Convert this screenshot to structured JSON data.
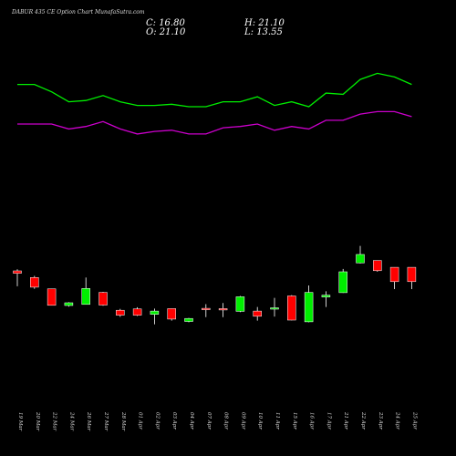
{
  "chart_data": {
    "type": "candlestick",
    "title": "DABUR 435 CE Option  Chart MunafaSutra.com",
    "ohlc_readout": {
      "C": "C: 16.80",
      "H": "H: 21.10",
      "O": "O: 21.10",
      "L": "L: 13.55"
    },
    "ylim": [
      0,
      63
    ],
    "categories": [
      "19 Mar",
      "20 Mar",
      "22 Mar",
      "24 Mar",
      "26 Mar",
      "27 Mar",
      "28 Mar",
      "01 Apr",
      "02 Apr",
      "03 Apr",
      "04 Apr",
      "07 Apr",
      "08 Apr",
      "09 Apr",
      "10 Apr",
      "11 Apr",
      "15 Apr",
      "16 Apr",
      "17 Apr",
      "21 Apr",
      "22 Apr",
      "23 Apr",
      "24 Apr",
      "25 Apr"
    ],
    "candles": [
      {
        "o": 47.4,
        "h": 48.0,
        "l": 41.8,
        "c": 46.5
      },
      {
        "o": 45.0,
        "h": 45.6,
        "l": 40.9,
        "c": 41.5
      },
      {
        "o": 40.9,
        "h": 40.9,
        "l": 34.8,
        "c": 34.9
      },
      {
        "o": 34.8,
        "h": 36.0,
        "l": 34.4,
        "c": 35.8
      },
      {
        "o": 35.2,
        "h": 45.0,
        "l": 35.2,
        "c": 41.0
      },
      {
        "o": 39.6,
        "h": 39.8,
        "l": 34.7,
        "c": 35.0
      },
      {
        "o": 33.1,
        "h": 33.6,
        "l": 30.7,
        "c": 31.3
      },
      {
        "o": 33.6,
        "h": 34.2,
        "l": 31.0,
        "c": 31.3
      },
      {
        "o": 31.6,
        "h": 33.7,
        "l": 28.0,
        "c": 32.8
      },
      {
        "o": 33.7,
        "h": 33.7,
        "l": 29.3,
        "c": 29.9
      },
      {
        "o": 29.0,
        "h": 30.3,
        "l": 28.7,
        "c": 30.1
      },
      {
        "o": 33.8,
        "h": 35.3,
        "l": 30.6,
        "c": 33.4
      },
      {
        "o": 33.7,
        "h": 35.7,
        "l": 30.6,
        "c": 33.4
      },
      {
        "o": 32.7,
        "h": 38.3,
        "l": 32.4,
        "c": 38.0
      },
      {
        "o": 32.8,
        "h": 34.3,
        "l": 29.3,
        "c": 30.9
      },
      {
        "o": 33.7,
        "h": 37.6,
        "l": 30.8,
        "c": 34.0
      },
      {
        "o": 38.3,
        "h": 38.6,
        "l": 29.4,
        "c": 29.5
      },
      {
        "o": 28.9,
        "h": 42.1,
        "l": 28.7,
        "c": 39.6
      },
      {
        "o": 37.9,
        "h": 40.0,
        "l": 34.3,
        "c": 38.6
      },
      {
        "o": 39.5,
        "h": 48.1,
        "l": 39.4,
        "c": 47.1
      },
      {
        "o": 50.3,
        "h": 56.5,
        "l": 50.1,
        "c": 53.4
      },
      {
        "o": 51.2,
        "h": 51.2,
        "l": 47.1,
        "c": 47.5
      },
      {
        "o": 48.7,
        "h": 48.7,
        "l": 40.8,
        "c": 43.5
      },
      {
        "o": 48.7,
        "h": 48.7,
        "l": 40.8,
        "c": 43.5
      }
    ],
    "overlays": [
      {
        "color": "#00ee00",
        "values": [
          156,
          156,
          150,
          142,
          143,
          147,
          142,
          139,
          139,
          140,
          138,
          138,
          142,
          142,
          146,
          139,
          142,
          138,
          149,
          148,
          160,
          165,
          162,
          156
        ]
      },
      {
        "color": "#cc00cc",
        "values": [
          124,
          124,
          124,
          120,
          122,
          126,
          120,
          116,
          118,
          119,
          116,
          116,
          121,
          122,
          124,
          119,
          122,
          120,
          127,
          127,
          132,
          134,
          134,
          130
        ]
      }
    ],
    "overlay_ylim": [
      40,
      180
    ],
    "colors": {
      "up": "#00ee00",
      "down": "#ff0000",
      "wick": "#ffffff",
      "background": "#000000"
    }
  }
}
